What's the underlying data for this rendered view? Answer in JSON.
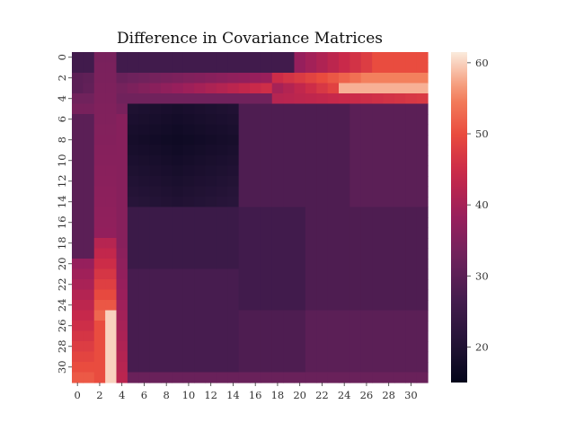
{
  "chart_data": {
    "type": "heatmap",
    "title": "Difference in Covariance Matrices",
    "xlabel": "",
    "ylabel": "",
    "x_tick_labels": [
      "0",
      "2",
      "4",
      "6",
      "8",
      "10",
      "12",
      "14",
      "16",
      "18",
      "20",
      "22",
      "24",
      "26",
      "28",
      "30"
    ],
    "y_tick_labels": [
      "0",
      "2",
      "4",
      "6",
      "8",
      "10",
      "12",
      "14",
      "16",
      "18",
      "20",
      "22",
      "24",
      "26",
      "28",
      "30"
    ],
    "colorbar": {
      "colormap": "rocket",
      "range": [
        15,
        61.5
      ],
      "tick_labels": [
        "20",
        "30",
        "40",
        "50",
        "60"
      ],
      "tick_values": [
        20,
        30,
        40,
        50,
        60
      ]
    },
    "matrix_size": 32,
    "stats": {
      "min": 15,
      "max": 61.5
    }
  }
}
